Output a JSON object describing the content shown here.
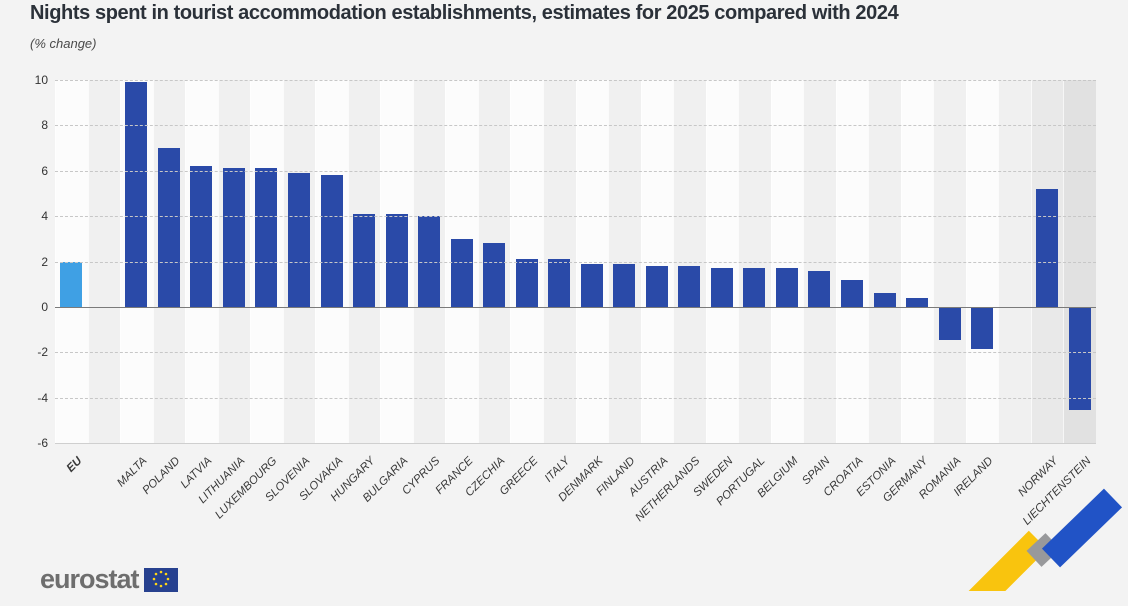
{
  "title": "Nights spent in tourist accommodation establishments, estimates for 2025 compared with 2024",
  "subtitle": "(% change)",
  "logo": {
    "text": "eurostat"
  },
  "chart_data": {
    "type": "bar",
    "title": "Nights spent in tourist accommodation establishments, estimates for 2025 compared with 2024",
    "ylabel": "% change",
    "ylim": [
      -6,
      10
    ],
    "yticks": [
      10,
      8,
      6,
      4,
      2,
      0,
      -2,
      -4,
      -6
    ],
    "grid": "horizontal dashed",
    "legend": "none",
    "bars": [
      {
        "label": "EU",
        "value": 2.0,
        "highlight": true
      },
      {
        "label": "MALTA",
        "value": 9.9
      },
      {
        "label": "POLAND",
        "value": 7.0
      },
      {
        "label": "LATVIA",
        "value": 6.2
      },
      {
        "label": "LITHUANIA",
        "value": 6.1
      },
      {
        "label": "LUXEMBOURG",
        "value": 6.1
      },
      {
        "label": "SLOVENIA",
        "value": 5.9
      },
      {
        "label": "SLOVAKIA",
        "value": 5.8
      },
      {
        "label": "HUNGARY",
        "value": 4.1
      },
      {
        "label": "BULGARIA",
        "value": 4.1
      },
      {
        "label": "CYPRUS",
        "value": 4.0
      },
      {
        "label": "FRANCE",
        "value": 3.0
      },
      {
        "label": "CZECHIA",
        "value": 2.8
      },
      {
        "label": "GREECE",
        "value": 2.1
      },
      {
        "label": "ITALY",
        "value": 2.1
      },
      {
        "label": "DENMARK",
        "value": 1.9
      },
      {
        "label": "FINLAND",
        "value": 1.9
      },
      {
        "label": "AUSTRIA",
        "value": 1.8
      },
      {
        "label": "NETHERLANDS",
        "value": 1.8
      },
      {
        "label": "SWEDEN",
        "value": 1.7
      },
      {
        "label": "PORTUGAL",
        "value": 1.7
      },
      {
        "label": "BELGIUM",
        "value": 1.7
      },
      {
        "label": "SPAIN",
        "value": 1.6
      },
      {
        "label": "CROATIA",
        "value": 1.2
      },
      {
        "label": "ESTONIA",
        "value": 0.6
      },
      {
        "label": "GERMANY",
        "value": 0.4
      },
      {
        "label": "ROMANIA",
        "value": -1.4
      },
      {
        "label": "IRELAND",
        "value": -1.8
      },
      {
        "label": "NORWAY",
        "value": 5.2,
        "efta": true
      },
      {
        "label": "LIECHTENSTEIN",
        "value": -4.5,
        "efta": true
      }
    ],
    "gaps_after": [
      "EU",
      "IRELAND"
    ],
    "colors": {
      "bar": "#2A4AA8",
      "highlight": "#3FA0E4",
      "stripe_light": "#fcfcfc",
      "stripe_dark": "#f0f0f0",
      "efta_bg_first": "#e9e9e9",
      "efta_bg_second": "#e1e1e1",
      "zigzag_yellow": "#F9C40E",
      "zigzag_gray": "#98999B",
      "zigzag_blue": "#2153C6"
    }
  }
}
